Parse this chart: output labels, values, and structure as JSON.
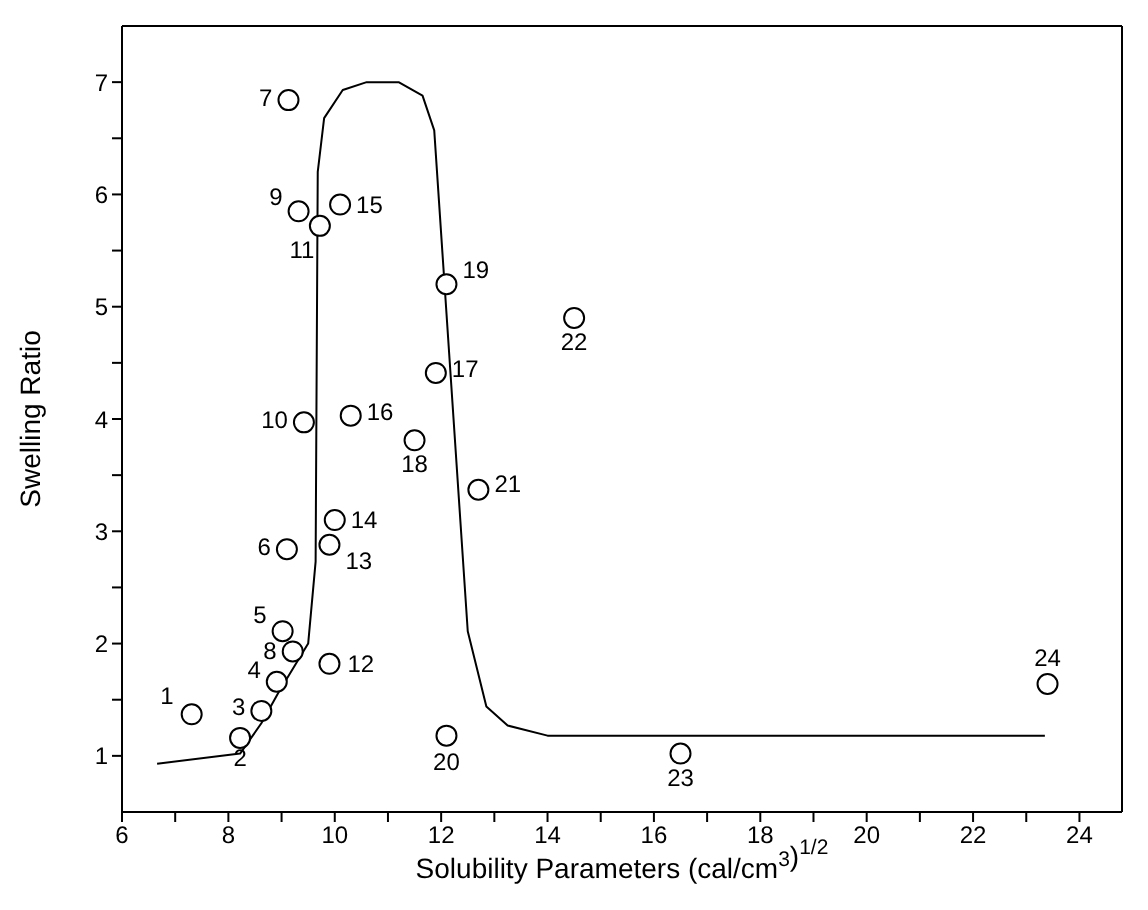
{
  "chart_data": {
    "type": "scatter",
    "xlabel": "Solubility Parameters (cal/cm$^{3}$)$^{1/2}$",
    "ylabel": "Swelling Ratio",
    "xlim": [
      6,
      24.8
    ],
    "ylim": [
      0.5,
      7.5
    ],
    "xticks": [
      6,
      {
        "value": 7,
        "label": null
      },
      8,
      {
        "value": 9,
        "label": null
      },
      10,
      {
        "value": 11,
        "label": null
      },
      12,
      {
        "value": 13,
        "label": null
      },
      14,
      {
        "value": 15,
        "label": null
      },
      16,
      {
        "value": 17,
        "label": null
      },
      18,
      {
        "value": 19,
        "label": null
      },
      20,
      {
        "value": 21,
        "label": null
      },
      22,
      {
        "value": 23,
        "label": null
      },
      24
    ],
    "yticks": [
      1,
      {
        "value": 1.5,
        "label": null
      },
      2,
      {
        "value": 2.5,
        "label": null
      },
      3,
      {
        "value": 3.5,
        "label": null
      },
      4,
      {
        "value": 4.5,
        "label": null
      },
      5,
      {
        "value": 5.5,
        "label": null
      },
      6,
      {
        "value": 6.5,
        "label": null
      },
      7
    ],
    "series": [
      {
        "color": "#000000",
        "marker": "circle",
        "x": [
          7.31,
          8.22,
          8.62,
          8.91,
          9.02,
          9.1,
          9.13,
          9.21,
          9.32,
          9.42,
          9.72,
          9.9,
          9.9,
          10.0,
          10.1,
          10.3,
          11.9,
          11.5,
          12.1,
          12.1,
          12.7,
          14.5,
          16.5,
          23.4
        ],
        "values": [
          1.37,
          1.16,
          1.4,
          1.66,
          2.11,
          2.84,
          6.84,
          1.93,
          5.85,
          3.97,
          5.72,
          1.82,
          2.88,
          3.1,
          5.91,
          4.03,
          4.41,
          3.81,
          5.2,
          1.18,
          3.37,
          4.9,
          1.02,
          1.64
        ]
      },
      {
        "type": "line",
        "color": "#000000",
        "marker": "none",
        "line_style": "solid",
        "x": [
          6.66,
          8.22,
          8.62,
          8.95,
          9.5,
          9.64,
          9.68,
          9.8,
          10.15,
          10.6,
          11.2,
          11.65,
          11.87,
          12.5,
          12.85,
          13.25,
          14.0,
          23.35
        ],
        "values": [
          0.93,
          1.02,
          1.29,
          1.57,
          2.0,
          2.73,
          6.2,
          6.68,
          6.93,
          7.0,
          7.0,
          6.88,
          6.57,
          2.11,
          1.44,
          1.27,
          1.18,
          1.18
        ]
      }
    ],
    "annotations": [
      {
        "text": "1",
        "x": 7.31,
        "y": 1.37
      },
      {
        "text": "2",
        "x": 8.22,
        "y": 1.16
      },
      {
        "text": "3",
        "x": 8.62,
        "y": 1.4
      },
      {
        "text": "4",
        "x": 8.91,
        "y": 1.66
      },
      {
        "text": "5",
        "x": 9.02,
        "y": 2.11
      },
      {
        "text": "6",
        "x": 9.1,
        "y": 2.84
      },
      {
        "text": "7",
        "x": 9.13,
        "y": 6.84
      },
      {
        "text": "8",
        "x": 9.21,
        "y": 1.93
      },
      {
        "text": "9",
        "x": 9.32,
        "y": 5.85
      },
      {
        "text": "10",
        "x": 9.42,
        "y": 3.97
      },
      {
        "text": "11",
        "x": 9.72,
        "y": 5.72
      },
      {
        "text": "12",
        "x": 9.9,
        "y": 1.82
      },
      {
        "text": "13",
        "x": 9.9,
        "y": 2.88
      },
      {
        "text": "14",
        "x": 10.0,
        "y": 3.1
      },
      {
        "text": "15",
        "x": 10.1,
        "y": 5.91
      },
      {
        "text": "16",
        "x": 10.3,
        "y": 4.03
      },
      {
        "text": "17",
        "x": 11.9,
        "y": 4.41
      },
      {
        "text": "18",
        "x": 11.5,
        "y": 3.81
      },
      {
        "text": "19",
        "x": 12.1,
        "y": 5.2
      },
      {
        "text": "20",
        "x": 12.1,
        "y": 1.18
      },
      {
        "text": "21",
        "x": 12.7,
        "y": 3.37
      },
      {
        "text": "22",
        "x": 14.5,
        "y": 4.9
      },
      {
        "text": "23",
        "x": 16.5,
        "y": 1.02
      },
      {
        "text": "24",
        "x": 23.4,
        "y": 1.64
      }
    ]
  }
}
